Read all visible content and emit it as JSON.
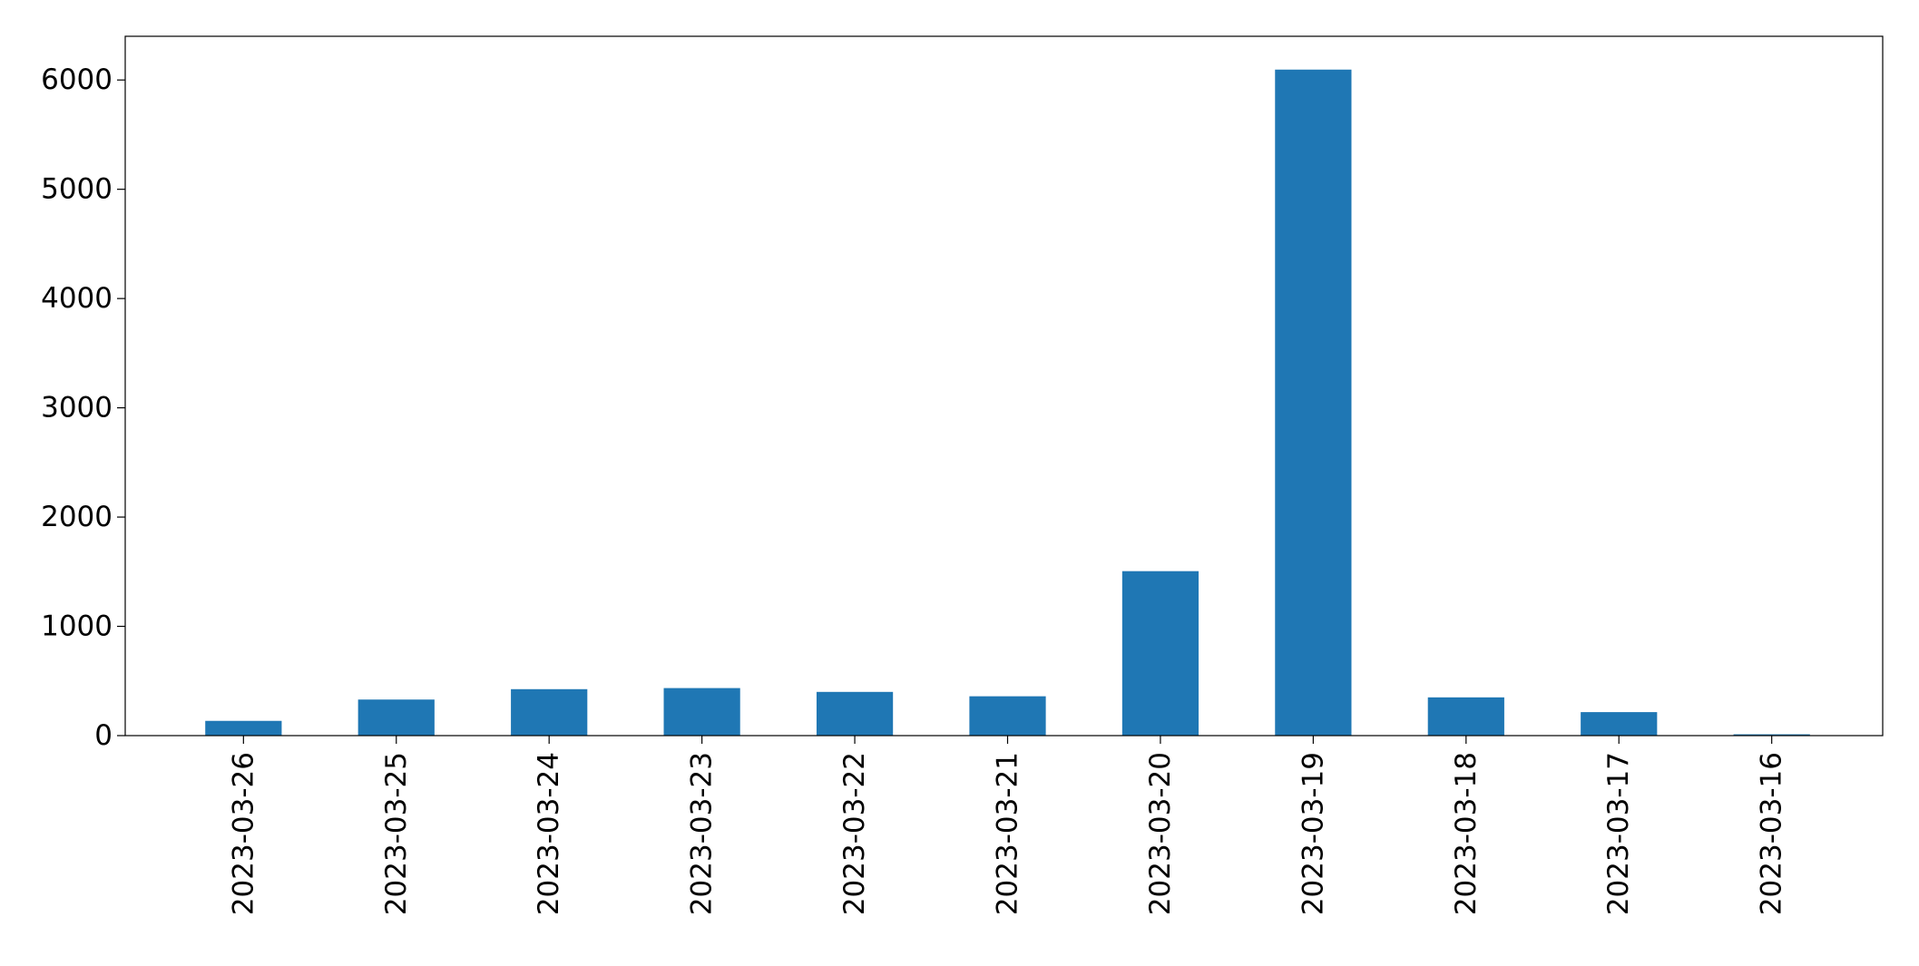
{
  "chart_data": {
    "type": "bar",
    "categories": [
      "2023-03-26",
      "2023-03-25",
      "2023-03-24",
      "2023-03-23",
      "2023-03-22",
      "2023-03-21",
      "2023-03-20",
      "2023-03-19",
      "2023-03-18",
      "2023-03-17",
      "2023-03-16"
    ],
    "values": [
      135,
      330,
      425,
      435,
      400,
      360,
      1505,
      6095,
      350,
      215,
      12
    ],
    "title": "",
    "xlabel": "",
    "ylabel": "",
    "ylim": [
      0,
      6400
    ],
    "yticks": [
      0,
      1000,
      2000,
      3000,
      4000,
      5000,
      6000
    ],
    "grid": false,
    "legend": "none",
    "bar_color": "#1f77b4",
    "x_tick_rotation": "vertical"
  }
}
